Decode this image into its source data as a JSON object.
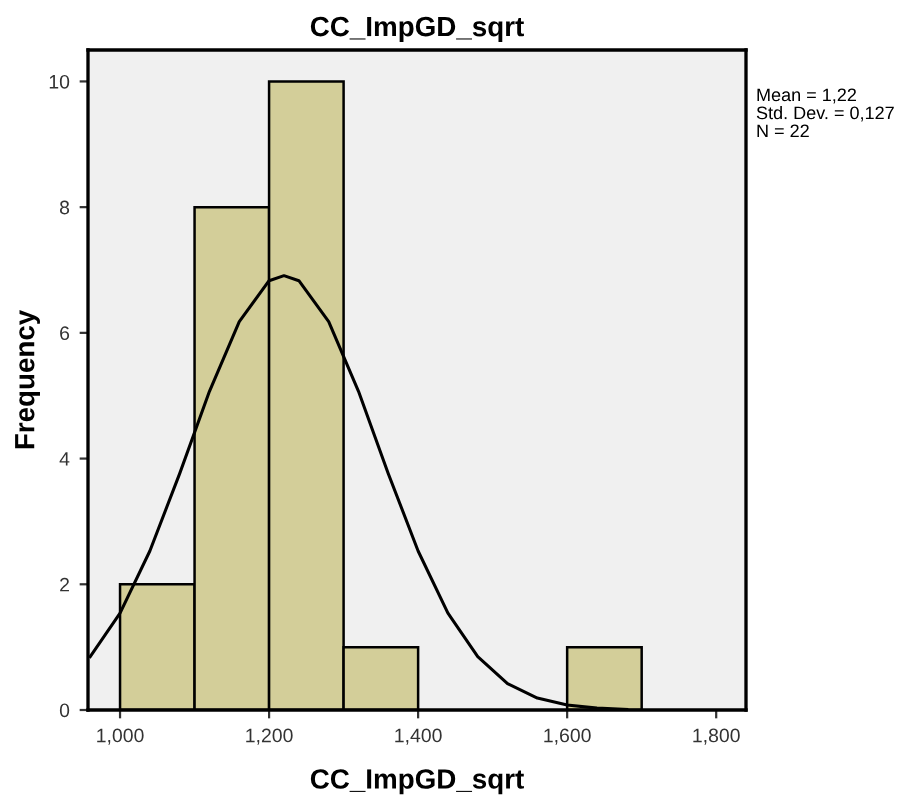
{
  "chart_data": {
    "type": "histogram",
    "title": "CC_ImpGD_sqrt",
    "xlabel": "CC_ImpGD_sqrt",
    "ylabel": "Frequency",
    "bins": [
      1.0,
      1.1,
      1.2,
      1.3,
      1.4,
      1.5,
      1.6,
      1.7
    ],
    "values": [
      2,
      8,
      10,
      1,
      0,
      0,
      1
    ],
    "color": "#d3ce99",
    "series": [
      {
        "type": "line",
        "color": "#000000",
        "x": [
          0.96,
          1.0,
          1.04,
          1.08,
          1.12,
          1.16,
          1.2,
          1.22,
          1.24,
          1.28,
          1.32,
          1.36,
          1.4,
          1.44,
          1.48,
          1.52,
          1.56,
          1.6,
          1.64,
          1.68
        ],
        "values": [
          0.85,
          1.54,
          2.53,
          3.76,
          5.07,
          6.18,
          6.83,
          6.91,
          6.83,
          6.18,
          5.07,
          3.76,
          2.53,
          1.54,
          0.85,
          0.42,
          0.19,
          0.08,
          0.03,
          0.01
        ]
      }
    ],
    "xlim": [
      0.957,
      1.84
    ],
    "ylim": [
      0,
      10.5
    ],
    "xticks": [
      {
        "value": 1.0,
        "label": "1,000"
      },
      {
        "value": 1.2,
        "label": "1,200"
      },
      {
        "value": 1.4,
        "label": "1,400"
      },
      {
        "value": 1.6,
        "label": "1,600"
      },
      {
        "value": 1.8,
        "label": "1,800"
      }
    ],
    "yticks": [
      0,
      2,
      4,
      6,
      8,
      10
    ],
    "annotations": [
      "Mean = 1,22",
      "Std. Dev. = 0,127",
      "N = 22"
    ],
    "grid": false,
    "legend": false
  }
}
